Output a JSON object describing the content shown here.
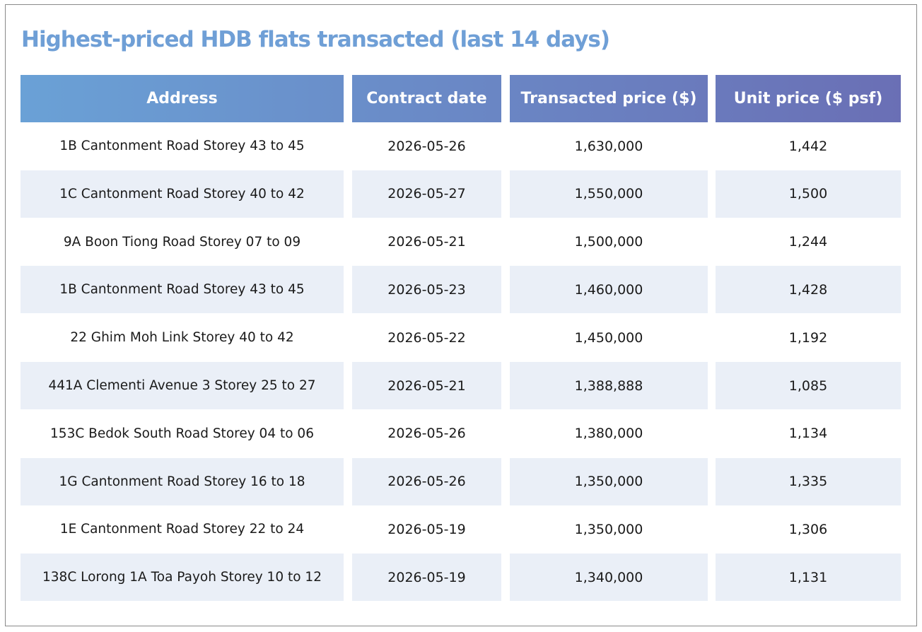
{
  "title": "Highest-priced HDB flats transacted (last 14 days)",
  "colors": {
    "title": "#6f9fd6",
    "header_gradient_start": "#6aa1d6",
    "header_gradient_end": "#6a6fb5",
    "alt_row": "#eaeff7",
    "border": "#8a8a8a"
  },
  "chart_data": {
    "type": "table",
    "title": "Highest-priced HDB flats transacted (last 14 days)",
    "columns": [
      "Address",
      "Contract date",
      "Transacted price ($)",
      "Unit price ($ psf)"
    ],
    "rows": [
      [
        "1B Cantonment Road Storey 43 to 45",
        "2026-05-26",
        "1,630,000",
        "1,442"
      ],
      [
        "1C Cantonment Road Storey 40 to 42",
        "2026-05-27",
        "1,550,000",
        "1,500"
      ],
      [
        "9A Boon Tiong Road Storey 07 to 09",
        "2026-05-21",
        "1,500,000",
        "1,244"
      ],
      [
        "1B Cantonment Road Storey 43 to 45",
        "2026-05-23",
        "1,460,000",
        "1,428"
      ],
      [
        "22 Ghim Moh Link Storey 40 to 42",
        "2026-05-22",
        "1,450,000",
        "1,192"
      ],
      [
        "441A Clementi Avenue 3 Storey 25 to 27",
        "2026-05-21",
        "1,388,888",
        "1,085"
      ],
      [
        "153C Bedok South Road Storey 04 to 06",
        "2026-05-26",
        "1,380,000",
        "1,134"
      ],
      [
        "1G Cantonment Road Storey 16 to 18",
        "2026-05-26",
        "1,350,000",
        "1,335"
      ],
      [
        "1E Cantonment Road Storey 22 to 24",
        "2026-05-19",
        "1,350,000",
        "1,306"
      ],
      [
        "138C Lorong 1A Toa Payoh Storey 10 to 12",
        "2026-05-19",
        "1,340,000",
        "1,131"
      ]
    ]
  }
}
